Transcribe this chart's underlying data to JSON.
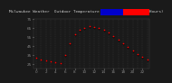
{
  "title": "Milwaukee Weather  Outdoor Temperature  vs Heat Index  (24 Hours)",
  "background_color": "#1a1a1a",
  "plot_bg_color": "#1a1a1a",
  "grid_color": "#444444",
  "temp_color": "#ff0000",
  "heat_color": "#000000",
  "legend_blue_color": "#0000cc",
  "legend_red_color": "#ff0000",
  "hours": [
    0,
    1,
    2,
    3,
    4,
    5,
    6,
    7,
    8,
    9,
    10,
    11,
    12,
    13,
    14,
    15,
    16,
    17,
    18,
    19,
    20,
    21,
    22,
    23
  ],
  "temp": [
    32,
    30,
    29,
    28,
    27,
    26,
    35,
    48,
    58,
    63,
    65,
    67,
    66,
    65,
    63,
    60,
    56,
    52,
    48,
    44,
    40,
    36,
    33,
    30
  ],
  "heat": [
    32,
    30,
    29,
    28,
    27,
    26,
    34,
    47,
    57,
    62,
    64,
    66,
    65,
    64,
    62,
    59,
    55,
    51,
    47,
    43,
    39,
    35,
    32,
    29
  ],
  "ylim": [
    20,
    75
  ],
  "xlim": [
    -0.5,
    23.5
  ],
  "ytick_values": [
    25,
    35,
    45,
    55,
    65,
    75
  ],
  "ytick_labels": [
    "25",
    "35",
    "45",
    "55",
    "65",
    "75"
  ],
  "title_color": "#cccccc",
  "tick_color": "#888888",
  "title_fontsize": 3.2,
  "tick_fontsize": 3.0,
  "marker_size": 1.2
}
